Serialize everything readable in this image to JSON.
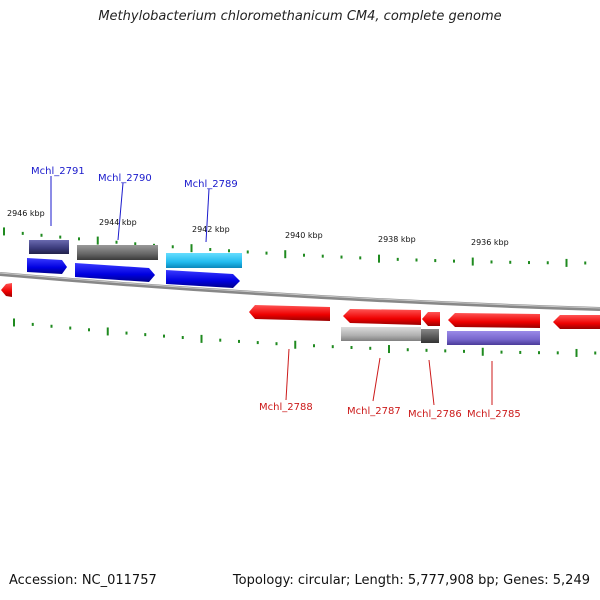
{
  "header": {
    "title": "Methylobacterium chloromethanicum CM4, complete genome"
  },
  "footer": {
    "accession": "Accession: NC_011757",
    "summary": "Topology: circular; Length: 5,777,908 bp; Genes: 5,249"
  },
  "scale": {
    "kbp_labels": [
      "2946 kbp",
      "2944 kbp",
      "2942 kbp",
      "2940 kbp",
      "2938 kbp",
      "2936 kbp"
    ]
  },
  "genes": {
    "forward": [
      {
        "label": "Mchl_2791",
        "color": "#1a1acc"
      },
      {
        "label": "Mchl_2790",
        "color": "#1a1acc"
      },
      {
        "label": "Mchl_2789",
        "color": "#1a1acc"
      }
    ],
    "reverse": [
      {
        "label": "Mchl_2788",
        "color": "#cc1a1a"
      },
      {
        "label": "Mchl_2787",
        "color": "#cc1a1a"
      },
      {
        "label": "Mchl_2786",
        "color": "#cc1a1a"
      },
      {
        "label": "Mchl_2785",
        "color": "#cc1a1a"
      }
    ]
  },
  "colors": {
    "forward_cds": "#0a0ae0",
    "reverse_cds": "#ee1111",
    "backbone": "#888888",
    "ticks": "#1f8a1f",
    "cog_dark_purple": "#3a3a7a",
    "cog_gray": "#6a6a6a",
    "cog_cyan": "#22bbee",
    "cog_light_gray": "#b0b0b0",
    "cog_dark_gray": "#555555",
    "cog_lavender": "#7766cc"
  }
}
